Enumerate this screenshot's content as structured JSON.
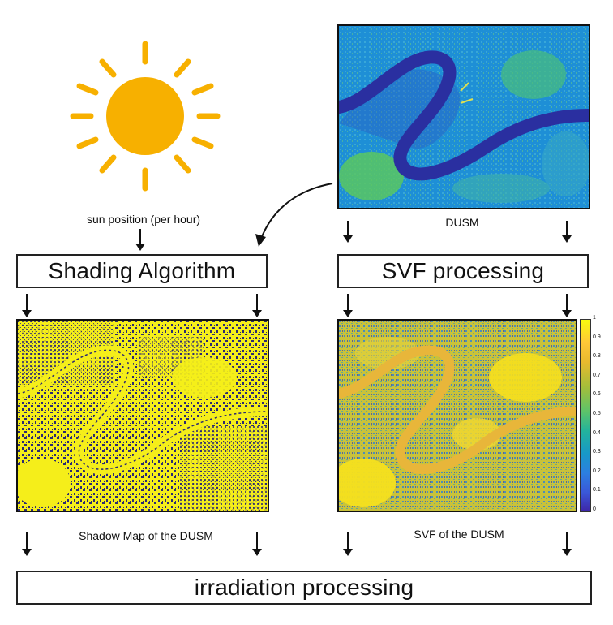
{
  "sun": {
    "icon": "sun-icon",
    "color": "#f7b000"
  },
  "labels": {
    "sun_position": "sun position (per hour)",
    "dusm": "DUSM",
    "shadow_map": "Shadow Map of the DUSM",
    "svf_map": "SVF of the DUSM"
  },
  "boxes": {
    "shading": "Shading Algorithm",
    "svf": "SVF processing",
    "irradiation": "irradiation processing"
  },
  "colorbar": {
    "ticks": [
      "1",
      "0.9",
      "0.8",
      "0.7",
      "0.6",
      "0.5",
      "0.4",
      "0.3",
      "0.2",
      "0.1",
      "0"
    ]
  },
  "colors": {
    "dusm_low": "#2a2fa0",
    "dusm_mid": "#1c9bd8",
    "dusm_high": "#5cc95a",
    "shadow_yellow": "#f5ee1a",
    "shadow_dark": "#2b2a72",
    "svf_high": "#f6e01e",
    "svf_low": "#3a3fa8"
  }
}
